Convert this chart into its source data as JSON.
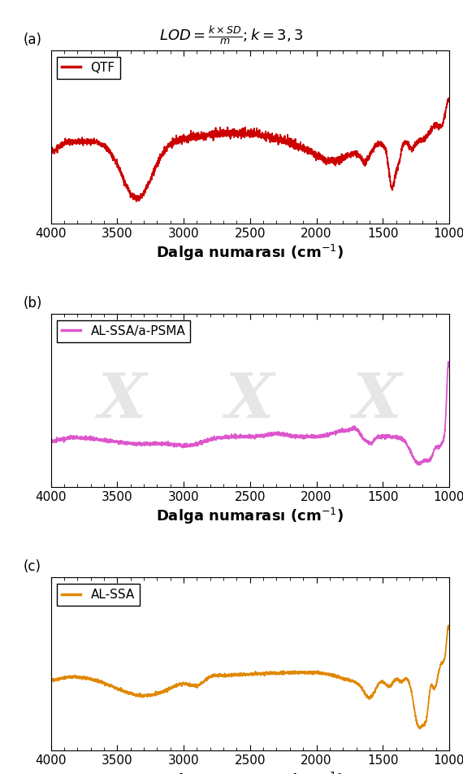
{
  "title_formula": "LOD = \\frac{k\\times SD}{m}; k = 3,3",
  "xlabel": "Dalga numarası (cm$^{-1}$)",
  "xlim": [
    4000,
    1000
  ],
  "xticks": [
    4000,
    3500,
    3000,
    2500,
    2000,
    1500,
    1000
  ],
  "panel_labels": [
    "(a)",
    "(b)",
    "(c)"
  ],
  "legend_labels": [
    "QTF",
    "AL-SSA/a-PSMA",
    "AL-SSA"
  ],
  "colors": [
    "#cc0000",
    "#dd55cc",
    "#e08800"
  ],
  "background_color": "#ffffff"
}
